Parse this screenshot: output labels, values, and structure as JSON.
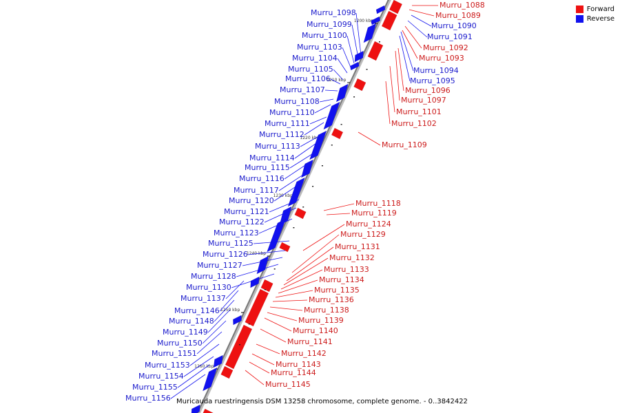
{
  "colors": {
    "forward": "#ee1111",
    "reverse": "#1111ee",
    "axis": "#888888",
    "tick": "#000000"
  },
  "legend": [
    {
      "label": "Forward",
      "color": "#ee1111"
    },
    {
      "label": "Reverse",
      "color": "#1111ee"
    }
  ],
  "caption": "Muricauda ruestringensis DSM 13258 chromosome, complete genome. - 0..3842422",
  "kbp_marks": [
    "1200 kbp",
    "1210 kbp",
    "1220 kbp",
    "1230 kbp",
    "1240 kbp",
    "1250 kbp",
    "1260 kbp"
  ],
  "reverse_labels": [
    "Murru_1090",
    "Murru_1091",
    "Murru_1094",
    "Murru_1095",
    "Murru_1098",
    "Murru_1099",
    "Murru_1100",
    "Murru_1103",
    "Murru_1104",
    "Murru_1105",
    "Murru_1106",
    "Murru_1107",
    "Murru_1108",
    "Murru_1110",
    "Murru_1111",
    "Murru_1112",
    "Murru_1113",
    "Murru_1114",
    "Murru_1115",
    "Murru_1116",
    "Murru_1117",
    "Murru_1120",
    "Murru_1121",
    "Murru_1122",
    "Murru_1123",
    "Murru_1125",
    "Murru_1126",
    "Murru_1127",
    "Murru_1128",
    "Murru_1130",
    "Murru_1137",
    "Murru_1146",
    "Murru_1148",
    "Murru_1149",
    "Murru_1150",
    "Murru_1151",
    "Murru_1153",
    "Murru_1154",
    "Murru_1155",
    "Murru_1156"
  ],
  "forward_labels": [
    "Murru_1088",
    "Murru_1089",
    "Murru_1092",
    "Murru_1093",
    "Murru_1096",
    "Murru_1097",
    "Murru_1101",
    "Murru_1102",
    "Murru_1109",
    "Murru_1118",
    "Murru_1119",
    "Murru_1124",
    "Murru_1129",
    "Murru_1131",
    "Murru_1132",
    "Murru_1133",
    "Murru_1134",
    "Murru_1135",
    "Murru_1136",
    "Murru_1138",
    "Murru_1139",
    "Murru_1140",
    "Murru_1141",
    "Murru_1142",
    "Murru_1143",
    "Murru_1144",
    "Murru_1145"
  ]
}
